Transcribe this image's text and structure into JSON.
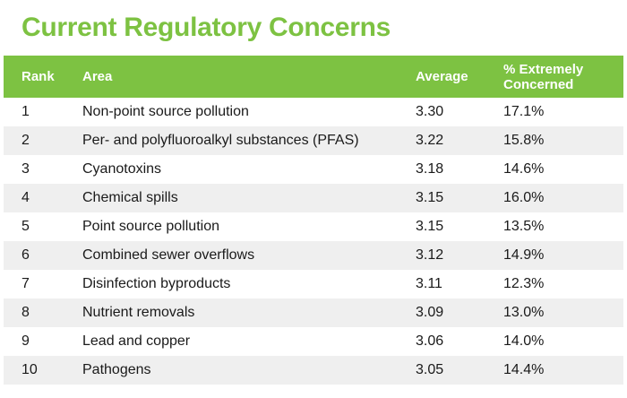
{
  "title": "Current Regulatory Concerns",
  "colors": {
    "accent": "#7dc242",
    "row_alt": "#efefef"
  },
  "chart_data": {
    "type": "table",
    "title": "Current Regulatory Concerns",
    "columns": [
      "Rank",
      "Area",
      "Average",
      "% Extremely Concerned"
    ],
    "rows": [
      [
        "1",
        "Non-point source pollution",
        "3.30",
        "17.1%"
      ],
      [
        "2",
        "Per- and polyfluoroalkyl substances (PFAS)",
        "3.22",
        "15.8%"
      ],
      [
        "3",
        "Cyanotoxins",
        "3.18",
        "14.6%"
      ],
      [
        "4",
        "Chemical spills",
        "3.15",
        "16.0%"
      ],
      [
        "5",
        "Point source pollution",
        "3.15",
        "13.5%"
      ],
      [
        "6",
        "Combined sewer overflows",
        "3.12",
        "14.9%"
      ],
      [
        "7",
        "Disinfection byproducts",
        "3.11",
        "12.3%"
      ],
      [
        "8",
        "Nutrient removals",
        "3.09",
        "13.0%"
      ],
      [
        "9",
        "Lead and copper",
        "3.06",
        "14.0%"
      ],
      [
        "10",
        "Pathogens",
        "3.05",
        "14.4%"
      ]
    ]
  }
}
